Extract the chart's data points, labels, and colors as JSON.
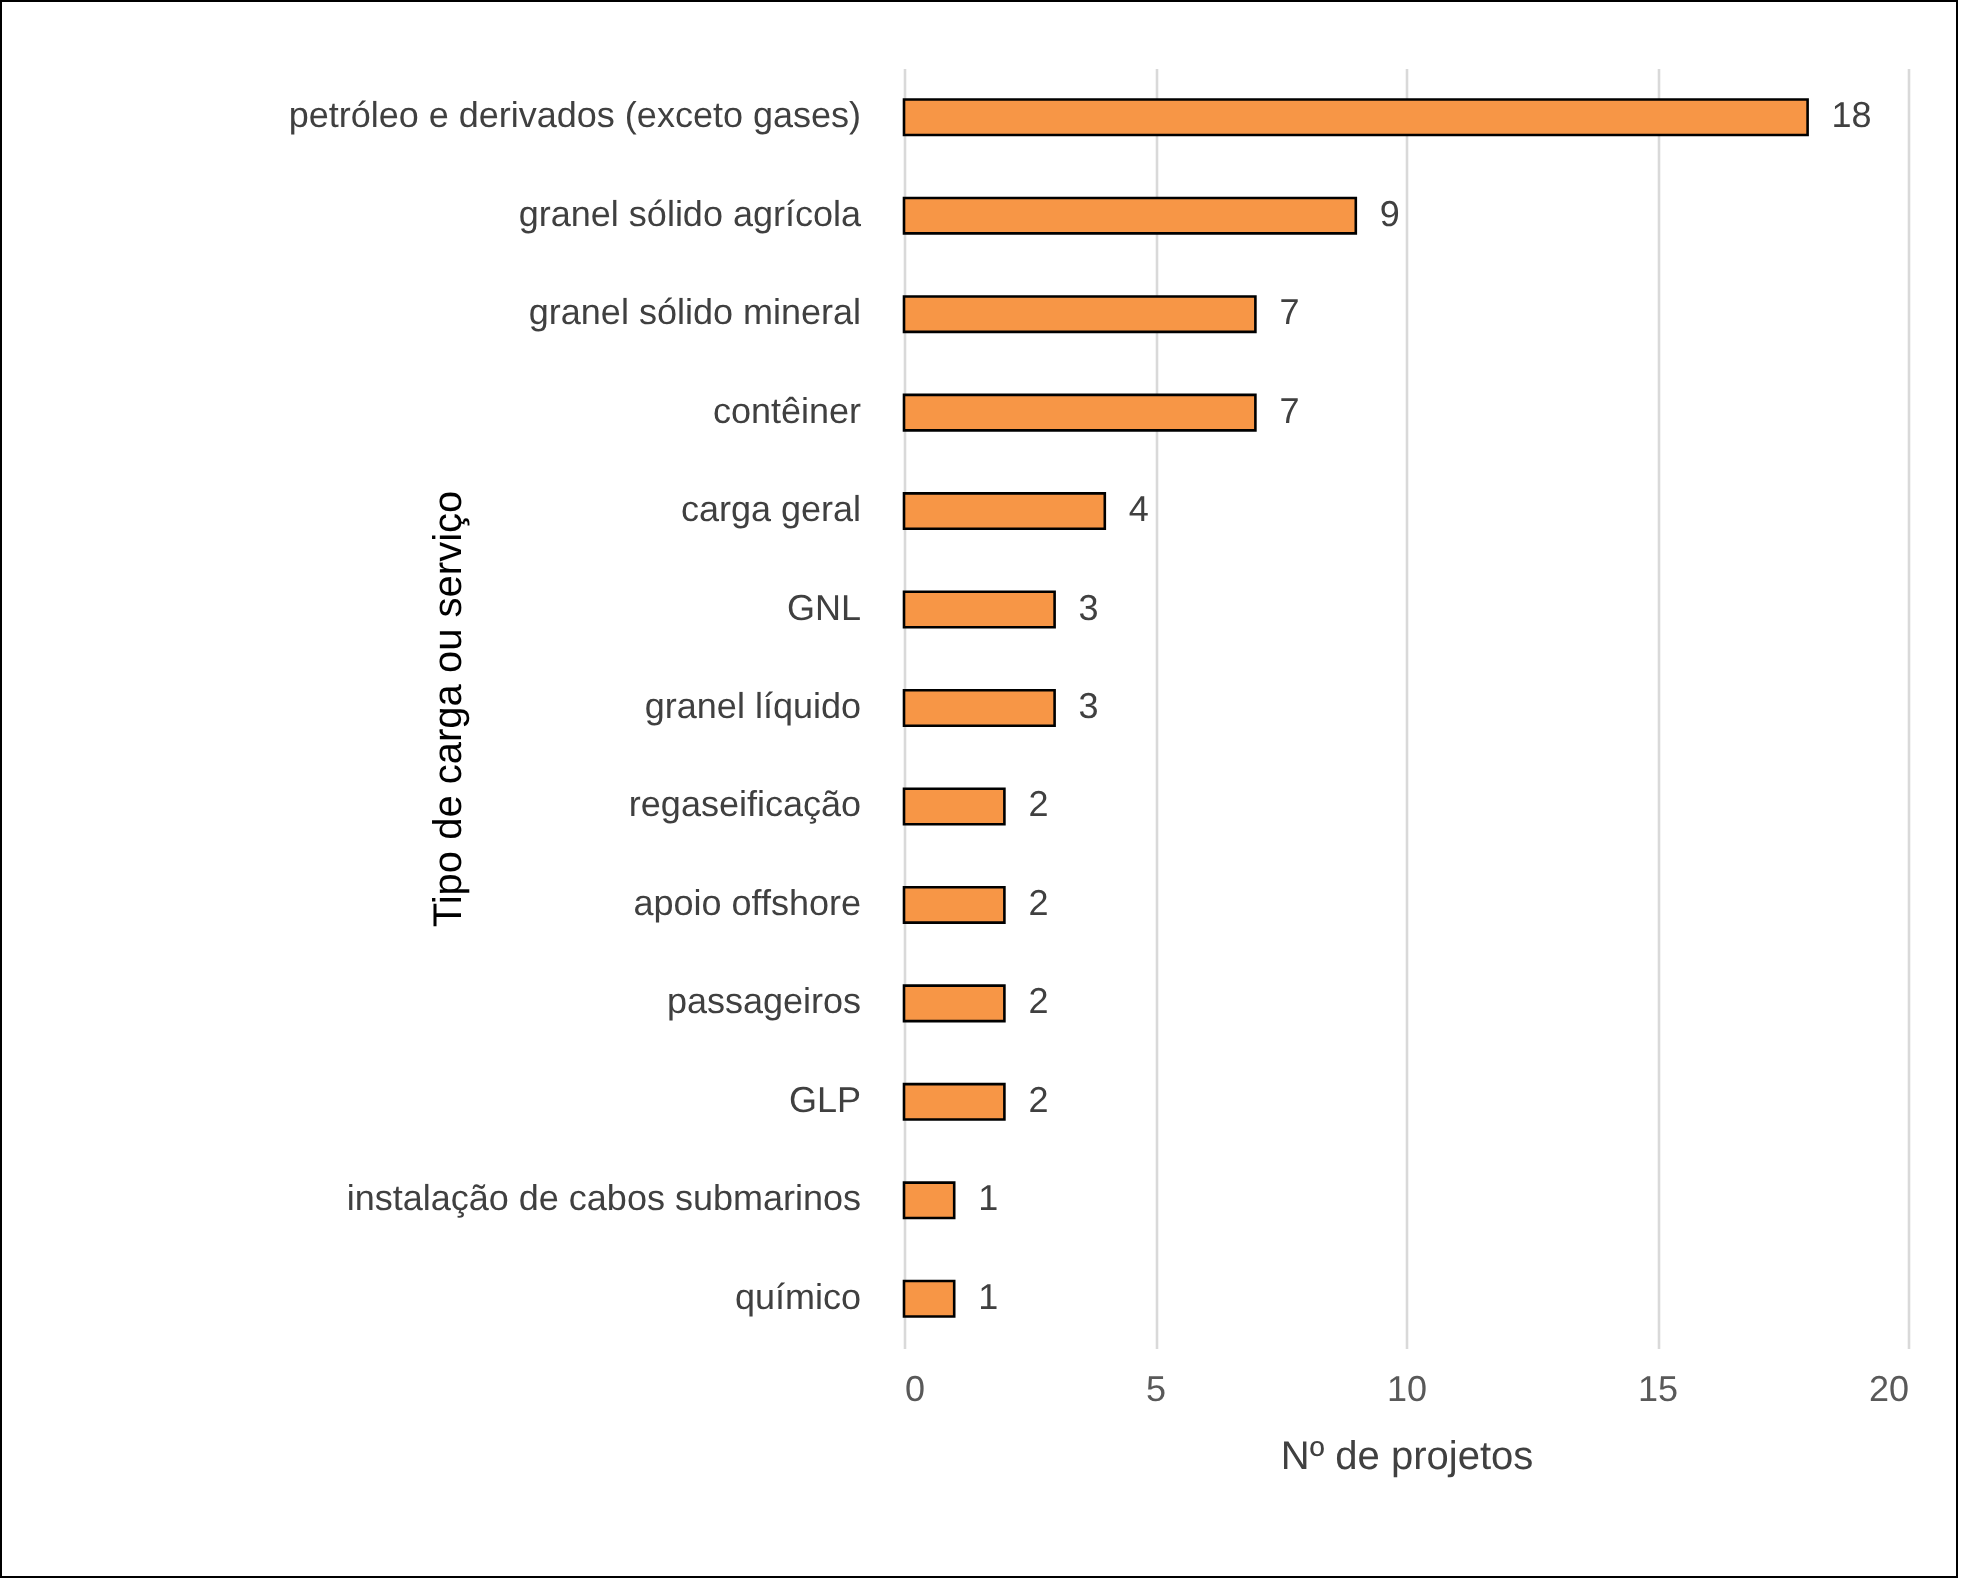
{
  "chart_data": {
    "type": "bar",
    "orientation": "horizontal",
    "categories": [
      "petróleo e derivados (exceto gases)",
      "granel sólido agrícola",
      "granel sólido mineral",
      "contêiner",
      "carga geral",
      "GNL",
      "granel líquido",
      "regaseificação",
      "apoio offshore",
      "passageiros",
      "GLP",
      "instalação de cabos submarinos",
      "químico"
    ],
    "values": [
      18,
      9,
      7,
      7,
      4,
      3,
      3,
      2,
      2,
      2,
      2,
      1,
      1
    ],
    "color": "#f79646",
    "xlabel": "Nº de projetos",
    "ylabel": "Tipo de carga ou serviço",
    "xlim": [
      0,
      20
    ],
    "xticks": [
      0,
      5,
      10,
      15,
      20
    ],
    "grid": "x",
    "data_labels": true
  }
}
